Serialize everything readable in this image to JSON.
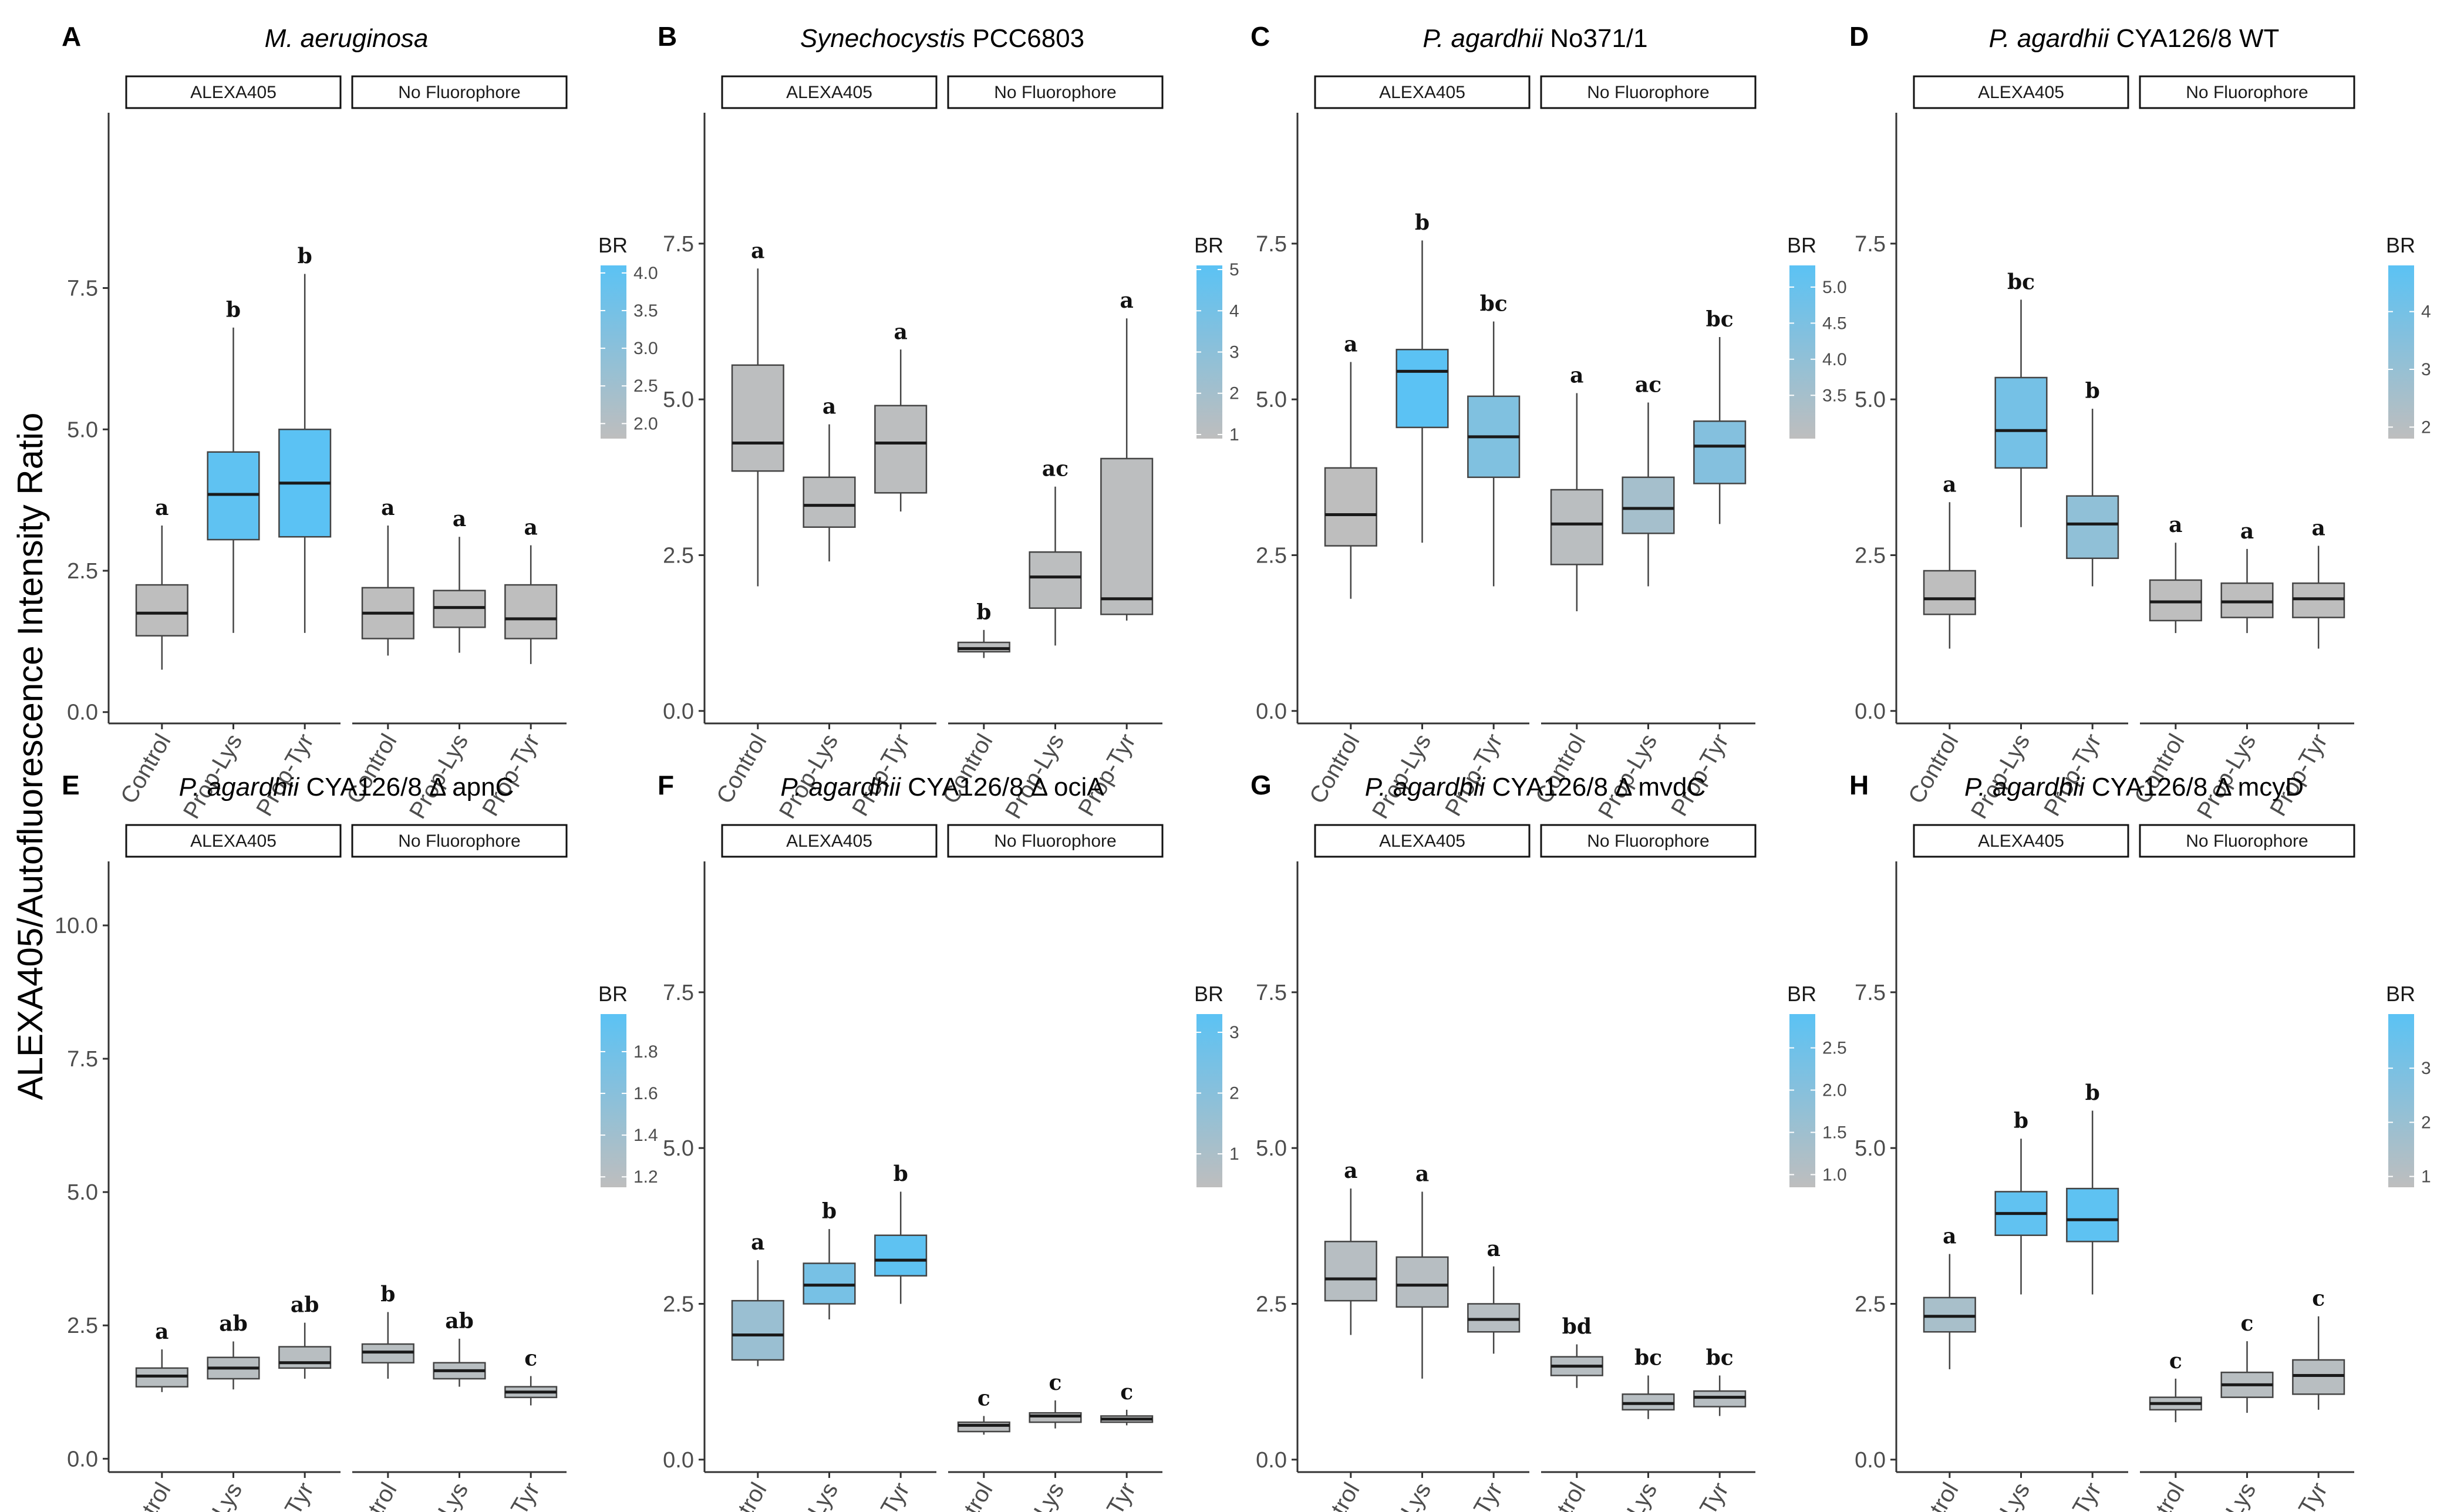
{
  "figure": {
    "y_axis_label": "ALEXA405/Autofluorescence Intensity Ratio",
    "facet_labels": [
      "ALEXA405",
      "No Fluorophore"
    ],
    "legend_title": "BR",
    "colors": {
      "low": "#bebebe",
      "high": "#5bc2f4",
      "box_line": "#444444",
      "axis": "#333333",
      "median": "#1a1a1a"
    }
  },
  "chart_data": [
    {
      "type": "boxplot",
      "letter": "A",
      "title_italic": "M. aeruginosa",
      "title_rest": "",
      "ylim": [
        -0.2,
        10.6
      ],
      "yticks": [
        "0.0",
        "2.5",
        "5.0",
        "7.5"
      ],
      "ytick_values": [
        0,
        2.5,
        5,
        7.5
      ],
      "legend_ticks": [
        "2.0",
        "2.5",
        "3.0",
        "3.5",
        "4.0"
      ],
      "legend_range": [
        1.8,
        4.1
      ],
      "facets": [
        {
          "label": "ALEXA405",
          "boxes": [
            {
              "category": "Control",
              "min": 0.75,
              "q1": 1.35,
              "median": 1.75,
              "q3": 2.25,
              "max": 3.3,
              "br": 1.8,
              "sig": "a"
            },
            {
              "category": "Prop-Lys",
              "min": 1.4,
              "q1": 3.05,
              "median": 3.85,
              "q3": 4.6,
              "max": 6.8,
              "br": 4.0,
              "sig": "b"
            },
            {
              "category": "Prop-Tyr",
              "min": 1.4,
              "q1": 3.1,
              "median": 4.05,
              "q3": 5.0,
              "max": 7.75,
              "br": 4.1,
              "sig": "b"
            }
          ]
        },
        {
          "label": "No Fluorophore",
          "boxes": [
            {
              "category": "Control",
              "min": 1.0,
              "q1": 1.3,
              "median": 1.75,
              "q3": 2.2,
              "max": 3.3,
              "br": 1.8,
              "sig": "a"
            },
            {
              "category": "Prop-Lys",
              "min": 1.05,
              "q1": 1.5,
              "median": 1.85,
              "q3": 2.15,
              "max": 3.1,
              "br": 1.8,
              "sig": "a"
            },
            {
              "category": "Prop-Tyr",
              "min": 0.85,
              "q1": 1.3,
              "median": 1.65,
              "q3": 2.25,
              "max": 2.95,
              "br": 1.8,
              "sig": "a"
            }
          ]
        }
      ]
    },
    {
      "type": "boxplot",
      "letter": "B",
      "title_italic": "Synechocystis",
      "title_rest": " PCC6803",
      "ylim": [
        -0.2,
        9.6
      ],
      "yticks": [
        "0.0",
        "2.5",
        "5.0",
        "7.5"
      ],
      "ytick_values": [
        0,
        2.5,
        5,
        7.5
      ],
      "legend_ticks": [
        "1",
        "2",
        "3",
        "4",
        "5"
      ],
      "legend_range": [
        0.9,
        5.1
      ],
      "facets": [
        {
          "label": "ALEXA405",
          "boxes": [
            {
              "category": "Control",
              "min": 2.0,
              "q1": 3.85,
              "median": 4.3,
              "q3": 5.55,
              "max": 7.1,
              "br": 1.0,
              "sig": "a"
            },
            {
              "category": "Prop-Lys",
              "min": 2.4,
              "q1": 2.95,
              "median": 3.3,
              "q3": 3.75,
              "max": 4.6,
              "br": 1.0,
              "sig": "a"
            },
            {
              "category": "Prop-Tyr",
              "min": 3.2,
              "q1": 3.5,
              "median": 4.3,
              "q3": 4.9,
              "max": 5.8,
              "br": 1.0,
              "sig": "a"
            }
          ]
        },
        {
          "label": "No Fluorophore",
          "boxes": [
            {
              "category": "Control",
              "min": 0.85,
              "q1": 0.95,
              "median": 1.0,
              "q3": 1.1,
              "max": 1.3,
              "br": 1.0,
              "sig": "b"
            },
            {
              "category": "Prop-Lys",
              "min": 1.05,
              "q1": 1.65,
              "median": 2.15,
              "q3": 2.55,
              "max": 3.6,
              "br": 1.0,
              "sig": "ac"
            },
            {
              "category": "Prop-Tyr",
              "min": 1.45,
              "q1": 1.55,
              "median": 1.8,
              "q3": 4.05,
              "max": 6.3,
              "br": 1.0,
              "sig": "a"
            }
          ]
        }
      ]
    },
    {
      "type": "boxplot",
      "letter": "C",
      "title_italic": "P. agardhii",
      "title_rest": " No371/1",
      "ylim": [
        -0.2,
        9.6
      ],
      "yticks": [
        "0.0",
        "2.5",
        "5.0",
        "7.5"
      ],
      "ytick_values": [
        0,
        2.5,
        5,
        7.5
      ],
      "legend_ticks": [
        "3.5",
        "4.0",
        "4.5",
        "5.0"
      ],
      "legend_range": [
        2.9,
        5.3
      ],
      "facets": [
        {
          "label": "ALEXA405",
          "boxes": [
            {
              "category": "Control",
              "min": 1.8,
              "q1": 2.65,
              "median": 3.15,
              "q3": 3.9,
              "max": 5.6,
              "br": 2.9,
              "sig": "a"
            },
            {
              "category": "Prop-Lys",
              "min": 2.7,
              "q1": 4.55,
              "median": 5.45,
              "q3": 5.8,
              "max": 7.55,
              "br": 5.3,
              "sig": "b"
            },
            {
              "category": "Prop-Tyr",
              "min": 2.0,
              "q1": 3.75,
              "median": 4.4,
              "q3": 5.05,
              "max": 6.25,
              "br": 4.4,
              "sig": "bc"
            }
          ]
        },
        {
          "label": "No Fluorophore",
          "boxes": [
            {
              "category": "Control",
              "min": 1.6,
              "q1": 2.35,
              "median": 3.0,
              "q3": 3.55,
              "max": 5.1,
              "br": 3.0,
              "sig": "a"
            },
            {
              "category": "Prop-Lys",
              "min": 2.0,
              "q1": 2.85,
              "median": 3.25,
              "q3": 3.75,
              "max": 4.95,
              "br": 3.5,
              "sig": "ac"
            },
            {
              "category": "Prop-Tyr",
              "min": 3.0,
              "q1": 3.65,
              "median": 4.25,
              "q3": 4.65,
              "max": 6.0,
              "br": 4.3,
              "sig": "bc"
            }
          ]
        }
      ]
    },
    {
      "type": "boxplot",
      "letter": "D",
      "title_italic": "P. agardhii",
      "title_rest": " CYA126/8 WT",
      "ylim": [
        -0.2,
        9.6
      ],
      "yticks": [
        "0.0",
        "2.5",
        "5.0",
        "7.5"
      ],
      "ytick_values": [
        0,
        2.5,
        5,
        7.5
      ],
      "legend_ticks": [
        "2",
        "3",
        "4"
      ],
      "legend_range": [
        1.8,
        4.8
      ],
      "facets": [
        {
          "label": "ALEXA405",
          "boxes": [
            {
              "category": "Control",
              "min": 1.0,
              "q1": 1.55,
              "median": 1.8,
              "q3": 2.25,
              "max": 3.35,
              "br": 1.8,
              "sig": "a"
            },
            {
              "category": "Prop-Lys",
              "min": 2.95,
              "q1": 3.9,
              "median": 4.5,
              "q3": 5.35,
              "max": 6.6,
              "br": 4.0,
              "sig": "bc"
            },
            {
              "category": "Prop-Tyr",
              "min": 2.0,
              "q1": 2.45,
              "median": 3.0,
              "q3": 3.45,
              "max": 4.85,
              "br": 3.2,
              "sig": "b"
            }
          ]
        },
        {
          "label": "No Fluorophore",
          "boxes": [
            {
              "category": "Control",
              "min": 1.25,
              "q1": 1.45,
              "median": 1.75,
              "q3": 2.1,
              "max": 2.7,
              "br": 1.8,
              "sig": "a"
            },
            {
              "category": "Prop-Lys",
              "min": 1.25,
              "q1": 1.5,
              "median": 1.75,
              "q3": 2.05,
              "max": 2.6,
              "br": 1.8,
              "sig": "a"
            },
            {
              "category": "Prop-Tyr",
              "min": 1.0,
              "q1": 1.5,
              "median": 1.8,
              "q3": 2.05,
              "max": 2.65,
              "br": 1.8,
              "sig": "a"
            }
          ]
        }
      ]
    },
    {
      "type": "boxplot",
      "letter": "E",
      "title_italic": "P. agardhii",
      "title_rest": " CYA126/8 Δ apnC",
      "ylim": [
        -0.25,
        11.2
      ],
      "yticks": [
        "0.0",
        "2.5",
        "5.0",
        "7.5",
        "10.0"
      ],
      "ytick_values": [
        0,
        2.5,
        5,
        7.5,
        10
      ],
      "legend_ticks": [
        "1.2",
        "1.4",
        "1.6",
        "1.8"
      ],
      "legend_range": [
        1.15,
        1.98
      ],
      "facets": [
        {
          "label": "ALEXA405",
          "boxes": [
            {
              "category": "Control",
              "min": 1.25,
              "q1": 1.35,
              "median": 1.55,
              "q3": 1.7,
              "max": 2.05,
              "br": 1.2,
              "sig": "a"
            },
            {
              "category": "Prop-Lys",
              "min": 1.3,
              "q1": 1.5,
              "median": 1.7,
              "q3": 1.9,
              "max": 2.2,
              "br": 1.2,
              "sig": "ab"
            },
            {
              "category": "Prop-Tyr",
              "min": 1.5,
              "q1": 1.7,
              "median": 1.8,
              "q3": 2.1,
              "max": 2.55,
              "br": 1.2,
              "sig": "ab"
            }
          ]
        },
        {
          "label": "No Fluorophore",
          "boxes": [
            {
              "category": "Control",
              "min": 1.5,
              "q1": 1.8,
              "median": 2.0,
              "q3": 2.15,
              "max": 2.75,
              "br": 1.2,
              "sig": "b"
            },
            {
              "category": "Prop-Lys",
              "min": 1.35,
              "q1": 1.5,
              "median": 1.65,
              "q3": 1.8,
              "max": 2.25,
              "br": 1.2,
              "sig": "ab"
            },
            {
              "category": "Prop-Tyr",
              "min": 1.0,
              "q1": 1.15,
              "median": 1.25,
              "q3": 1.35,
              "max": 1.55,
              "br": 1.2,
              "sig": "c"
            }
          ]
        }
      ]
    },
    {
      "type": "boxplot",
      "letter": "F",
      "title_italic": "P. agardhii",
      "title_rest": " CYA126/8 Δ ociA",
      "ylim": [
        -0.2,
        9.6
      ],
      "yticks": [
        "0.0",
        "2.5",
        "5.0",
        "7.5"
      ],
      "ytick_values": [
        0,
        2.5,
        5,
        7.5
      ],
      "legend_ticks": [
        "1",
        "2",
        "3"
      ],
      "legend_range": [
        0.45,
        3.3
      ],
      "facets": [
        {
          "label": "ALEXA405",
          "boxes": [
            {
              "category": "Control",
              "min": 1.5,
              "q1": 1.6,
              "median": 2.0,
              "q3": 2.55,
              "max": 3.2,
              "br": 1.5,
              "sig": "a"
            },
            {
              "category": "Prop-Lys",
              "min": 2.25,
              "q1": 2.5,
              "median": 2.8,
              "q3": 3.15,
              "max": 3.7,
              "br": 2.5,
              "sig": "b"
            },
            {
              "category": "Prop-Tyr",
              "min": 2.5,
              "q1": 2.95,
              "median": 3.2,
              "q3": 3.6,
              "max": 4.3,
              "br": 3.2,
              "sig": "b"
            }
          ]
        },
        {
          "label": "No Fluorophore",
          "boxes": [
            {
              "category": "Control",
              "min": 0.4,
              "q1": 0.45,
              "median": 0.55,
              "q3": 0.6,
              "max": 0.7,
              "br": 0.5,
              "sig": "c"
            },
            {
              "category": "Prop-Lys",
              "min": 0.5,
              "q1": 0.6,
              "median": 0.7,
              "q3": 0.75,
              "max": 0.95,
              "br": 0.5,
              "sig": "c"
            },
            {
              "category": "Prop-Tyr",
              "min": 0.55,
              "q1": 0.6,
              "median": 0.65,
              "q3": 0.7,
              "max": 0.8,
              "br": 0.5,
              "sig": "c"
            }
          ]
        }
      ]
    },
    {
      "type": "boxplot",
      "letter": "G",
      "title_italic": "P. agardhii",
      "title_rest": " CYA126/8 Δ mvdC",
      "ylim": [
        -0.2,
        9.6
      ],
      "yticks": [
        "0.0",
        "2.5",
        "5.0",
        "7.5"
      ],
      "ytick_values": [
        0,
        2.5,
        5,
        7.5
      ],
      "legend_ticks": [
        "1.0",
        "1.5",
        "2.0",
        "2.5"
      ],
      "legend_range": [
        0.85,
        2.9
      ],
      "facets": [
        {
          "label": "ALEXA405",
          "boxes": [
            {
              "category": "Control",
              "min": 2.0,
              "q1": 2.55,
              "median": 2.9,
              "q3": 3.5,
              "max": 4.35,
              "br": 1.0,
              "sig": "a"
            },
            {
              "category": "Prop-Lys",
              "min": 1.3,
              "q1": 2.45,
              "median": 2.8,
              "q3": 3.25,
              "max": 4.3,
              "br": 1.0,
              "sig": "a"
            },
            {
              "category": "Prop-Tyr",
              "min": 1.7,
              "q1": 2.05,
              "median": 2.25,
              "q3": 2.5,
              "max": 3.1,
              "br": 1.0,
              "sig": "a"
            }
          ]
        },
        {
          "label": "No Fluorophore",
          "boxes": [
            {
              "category": "Control",
              "min": 1.15,
              "q1": 1.35,
              "median": 1.5,
              "q3": 1.65,
              "max": 1.85,
              "br": 1.0,
              "sig": "bd"
            },
            {
              "category": "Prop-Lys",
              "min": 0.65,
              "q1": 0.8,
              "median": 0.9,
              "q3": 1.05,
              "max": 1.35,
              "br": 1.0,
              "sig": "bc"
            },
            {
              "category": "Prop-Tyr",
              "min": 0.7,
              "q1": 0.85,
              "median": 1.0,
              "q3": 1.1,
              "max": 1.35,
              "br": 1.0,
              "sig": "bc"
            }
          ]
        }
      ]
    },
    {
      "type": "boxplot",
      "letter": "H",
      "title_italic": "P. agardhii",
      "title_rest": " CYA126/8 Δ mcyD",
      "ylim": [
        -0.2,
        9.6
      ],
      "yticks": [
        "0.0",
        "2.5",
        "5.0",
        "7.5"
      ],
      "ytick_values": [
        0,
        2.5,
        5,
        7.5
      ],
      "legend_ticks": [
        "1",
        "2",
        "3"
      ],
      "legend_range": [
        0.8,
        4.0
      ],
      "facets": [
        {
          "label": "ALEXA405",
          "boxes": [
            {
              "category": "Control",
              "min": 1.45,
              "q1": 2.05,
              "median": 2.3,
              "q3": 2.6,
              "max": 3.3,
              "br": 1.5,
              "sig": "a"
            },
            {
              "category": "Prop-Lys",
              "min": 2.65,
              "q1": 3.6,
              "median": 3.95,
              "q3": 4.3,
              "max": 5.15,
              "br": 3.8,
              "sig": "b"
            },
            {
              "category": "Prop-Tyr",
              "min": 2.65,
              "q1": 3.5,
              "median": 3.85,
              "q3": 4.35,
              "max": 5.6,
              "br": 3.9,
              "sig": "b"
            }
          ]
        },
        {
          "label": "No Fluorophore",
          "boxes": [
            {
              "category": "Control",
              "min": 0.6,
              "q1": 0.8,
              "median": 0.9,
              "q3": 1.0,
              "max": 1.3,
              "br": 1.0,
              "sig": "c"
            },
            {
              "category": "Prop-Lys",
              "min": 0.75,
              "q1": 1.0,
              "median": 1.2,
              "q3": 1.4,
              "max": 1.9,
              "br": 1.0,
              "sig": "c"
            },
            {
              "category": "Prop-Tyr",
              "min": 0.8,
              "q1": 1.05,
              "median": 1.35,
              "q3": 1.6,
              "max": 2.3,
              "br": 1.0,
              "sig": "c"
            }
          ]
        }
      ]
    }
  ]
}
